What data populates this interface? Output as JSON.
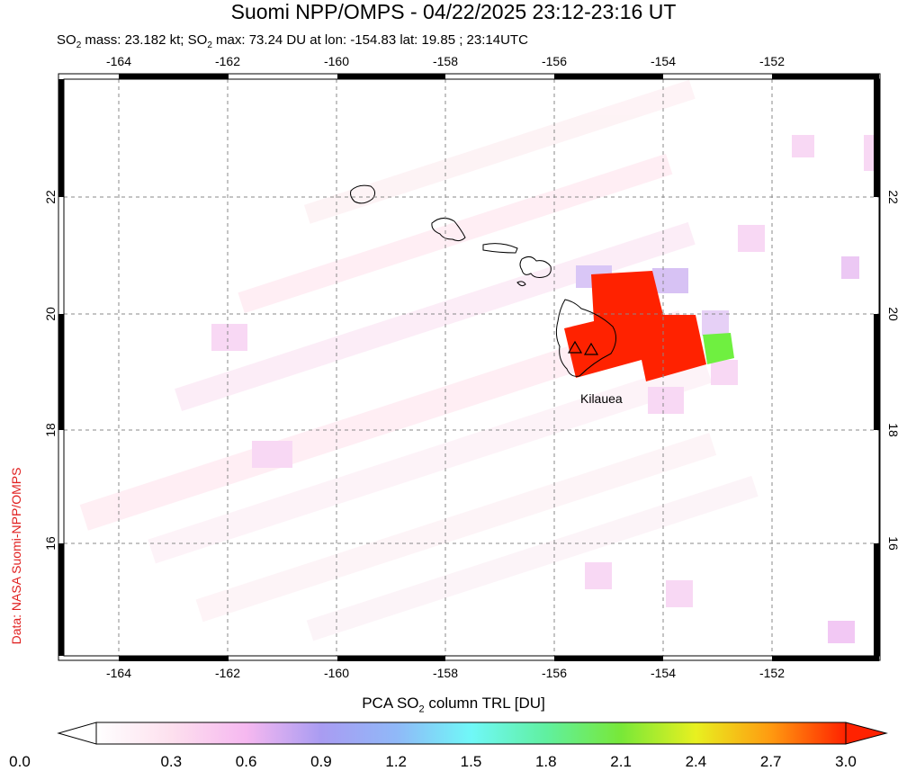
{
  "title": "Suomi NPP/OMPS - 04/22/2025 23:12-23:16 UT",
  "subtitle": {
    "p1": "SO",
    "s1": "2",
    "p2": " mass: 23.182 kt; SO",
    "s2": "2",
    "p3": " max: 73.24 DU at lon: -154.83 lat: 19.85 ; 23:14UTC"
  },
  "credit": "Data: NASA Suomi-NPP/OMPS",
  "map": {
    "lon_ticks": [
      "-164",
      "-162",
      "-160",
      "-158",
      "-156",
      "-154",
      "-152"
    ],
    "lat_ticks": [
      "22",
      "20",
      "18",
      "16"
    ],
    "volcano_label": "Kilauea",
    "plume_color": "#ff2200"
  },
  "colorbar": {
    "title_pre": "PCA SO",
    "title_sub": "2",
    "title_post": " column TRL [DU]",
    "ticks": [
      "0.0",
      "0.3",
      "0.6",
      "0.9",
      "1.2",
      "1.5",
      "1.8",
      "2.1",
      "2.4",
      "2.7",
      "3.0"
    ]
  }
}
